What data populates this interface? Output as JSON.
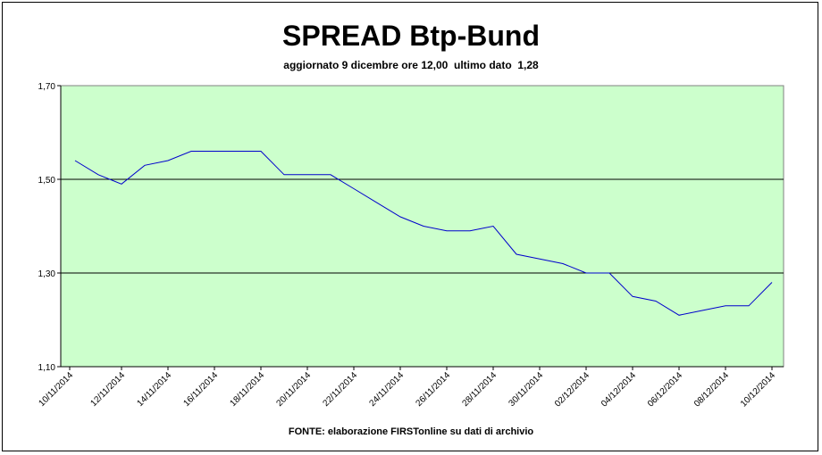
{
  "chart_data": {
    "type": "line",
    "title": "SPREAD Btp-Bund",
    "subtitle": "aggiornato 9 dicembre ore 12,00  ultimo dato  1,28",
    "source": "FONTE: elaborazione FIRSTonline su dati di archivio",
    "xlabel": "",
    "ylabel": "",
    "ylim": [
      1.1,
      1.7
    ],
    "y_ticks": [
      "1,10",
      "1,30",
      "1,50",
      "1,70"
    ],
    "y_tick_values": [
      1.1,
      1.3,
      1.5,
      1.7
    ],
    "gridlines_y": [
      1.3,
      1.5
    ],
    "x_tick_labels": [
      "10/11/2014",
      "12/11/2014",
      "14/11/2014",
      "16/11/2014",
      "18/11/2014",
      "20/11/2014",
      "22/11/2014",
      "24/11/2014",
      "26/11/2014",
      "28/11/2014",
      "30/11/2014",
      "02/12/2014",
      "04/12/2014",
      "06/12/2014",
      "08/12/2014",
      "10/12/2014"
    ],
    "xlim": [
      "2014-11-10",
      "2014-12-10"
    ],
    "series": [
      {
        "color": "#0000cc",
        "points": [
          [
            "2014-11-10",
            1.54
          ],
          [
            "2014-11-11",
            1.51
          ],
          [
            "2014-11-12",
            1.49
          ],
          [
            "2014-11-13",
            1.53
          ],
          [
            "2014-11-14",
            1.54
          ],
          [
            "2014-11-15",
            1.56
          ],
          [
            "2014-11-16",
            1.56
          ],
          [
            "2014-11-17",
            1.56
          ],
          [
            "2014-11-18",
            1.56
          ],
          [
            "2014-11-19",
            1.51
          ],
          [
            "2014-11-20",
            1.51
          ],
          [
            "2014-11-21",
            1.51
          ],
          [
            "2014-11-22",
            1.48
          ],
          [
            "2014-11-23",
            1.45
          ],
          [
            "2014-11-24",
            1.42
          ],
          [
            "2014-11-25",
            1.4
          ],
          [
            "2014-11-26",
            1.39
          ],
          [
            "2014-11-27",
            1.39
          ],
          [
            "2014-11-28",
            1.4
          ],
          [
            "2014-11-29",
            1.34
          ],
          [
            "2014-11-30",
            1.33
          ],
          [
            "2014-12-01",
            1.32
          ],
          [
            "2014-12-02",
            1.3
          ],
          [
            "2014-12-03",
            1.3
          ],
          [
            "2014-12-04",
            1.25
          ],
          [
            "2014-12-05",
            1.24
          ],
          [
            "2014-12-06",
            1.21
          ],
          [
            "2014-12-07",
            1.22
          ],
          [
            "2014-12-08",
            1.23
          ],
          [
            "2014-12-09",
            1.23
          ],
          [
            "2014-12-10",
            1.28
          ]
        ]
      }
    ],
    "plot_background": "#ccffcc",
    "grid": true,
    "legend": "none"
  }
}
